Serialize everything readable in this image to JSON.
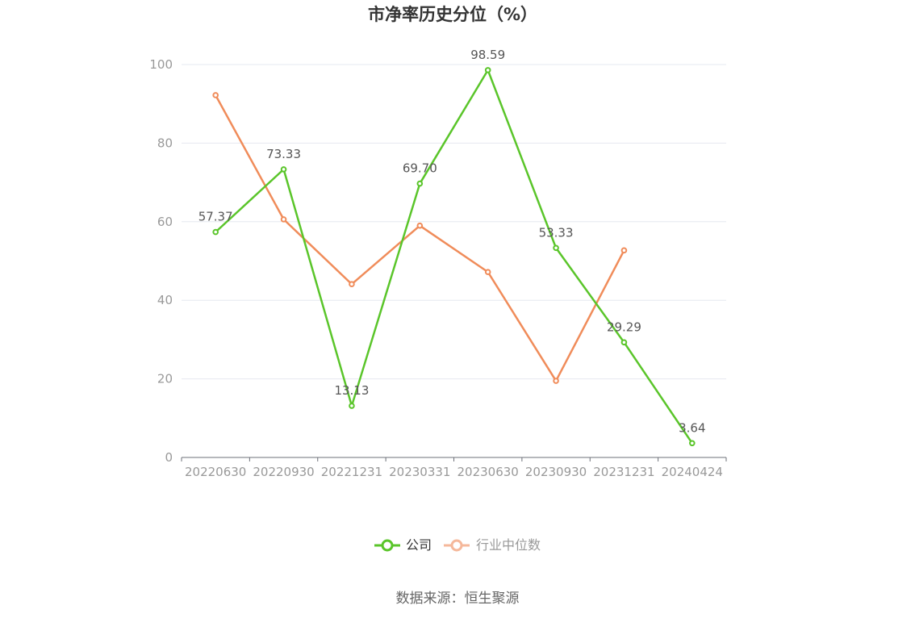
{
  "chart_data": {
    "type": "line",
    "title": "市净率历史分位（%）",
    "categories": [
      "20220630",
      "20220930",
      "20221231",
      "20230331",
      "20230630",
      "20230930",
      "20231231",
      "20240424"
    ],
    "ylim": [
      0,
      100
    ],
    "yticks": [
      "0",
      "20",
      "40",
      "60",
      "80",
      "100"
    ],
    "grid": true,
    "legend_position": "bottom",
    "series": [
      {
        "name": "公司",
        "color": "#5ac52a",
        "values": [
          57.37,
          73.33,
          13.13,
          69.7,
          98.59,
          53.33,
          29.29,
          3.64
        ],
        "labels": [
          "57.37",
          "73.33",
          "13.13",
          "69.70",
          "98.59",
          "53.33",
          "29.29",
          "3.64"
        ]
      },
      {
        "name": "行业中位数",
        "color": "#f08c5a",
        "legend_color": "#f5b89b",
        "values": [
          92.2,
          60.6,
          44.1,
          59.0,
          47.2,
          19.5,
          52.7,
          null
        ]
      }
    ]
  },
  "source_text": "数据来源：恒生聚源"
}
